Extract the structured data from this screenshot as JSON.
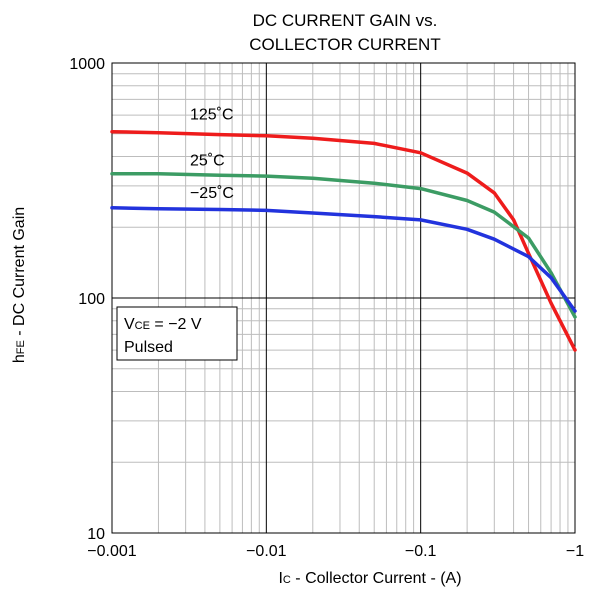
{
  "chart_data": {
    "type": "line",
    "title_lines": [
      "DC CURRENT GAIN vs.",
      "COLLECTOR CURRENT"
    ],
    "xlabel": {
      "main": "I",
      "sub": "C",
      "rest": " - Collector Current - (A)"
    },
    "ylabel": {
      "main": "h",
      "sub": "FE",
      "rest": " - DC Current Gain"
    },
    "x_scale": "log",
    "y_scale": "log",
    "xlim": [
      0.001,
      1
    ],
    "ylim": [
      10,
      1000
    ],
    "x_ticks": [
      {
        "value": 0.001,
        "label": "−0.001"
      },
      {
        "value": 0.01,
        "label": "−0.01"
      },
      {
        "value": 0.1,
        "label": "−0.1"
      },
      {
        "value": 1,
        "label": "−1"
      }
    ],
    "y_ticks": [
      {
        "value": 10,
        "label": "10"
      },
      {
        "value": 100,
        "label": "100"
      },
      {
        "value": 1000,
        "label": "1000"
      }
    ],
    "grid": true,
    "annotation": {
      "line1": {
        "main": "V",
        "sub": "CE",
        "rest": " = −2 V"
      },
      "line2": "Pulsed"
    },
    "series": [
      {
        "name": "125˚C",
        "color": "#ee1c1c",
        "x": [
          0.001,
          0.002,
          0.005,
          0.01,
          0.02,
          0.05,
          0.1,
          0.2,
          0.3,
          0.4,
          0.5,
          0.7,
          1.0
        ],
        "y": [
          510,
          505,
          496,
          490,
          478,
          455,
          415,
          340,
          280,
          215,
          155,
          95,
          60
        ]
      },
      {
        "name": "25˚C",
        "color": "#3c9c64",
        "x": [
          0.001,
          0.002,
          0.005,
          0.01,
          0.02,
          0.05,
          0.1,
          0.2,
          0.3,
          0.5,
          0.7,
          1.0
        ],
        "y": [
          338,
          338,
          333,
          330,
          323,
          308,
          292,
          260,
          232,
          180,
          128,
          83
        ]
      },
      {
        "name": "−25˚C",
        "color": "#2233dd",
        "x": [
          0.001,
          0.002,
          0.005,
          0.01,
          0.02,
          0.05,
          0.1,
          0.2,
          0.3,
          0.5,
          0.7,
          1.0
        ],
        "y": [
          242,
          240,
          238,
          236,
          230,
          222,
          215,
          196,
          178,
          150,
          122,
          88
        ]
      }
    ],
    "series_label_positions": [
      {
        "x": 0.0032,
        "y": 575
      },
      {
        "x": 0.0032,
        "y": 367
      },
      {
        "x": 0.0032,
        "y": 266
      }
    ]
  }
}
